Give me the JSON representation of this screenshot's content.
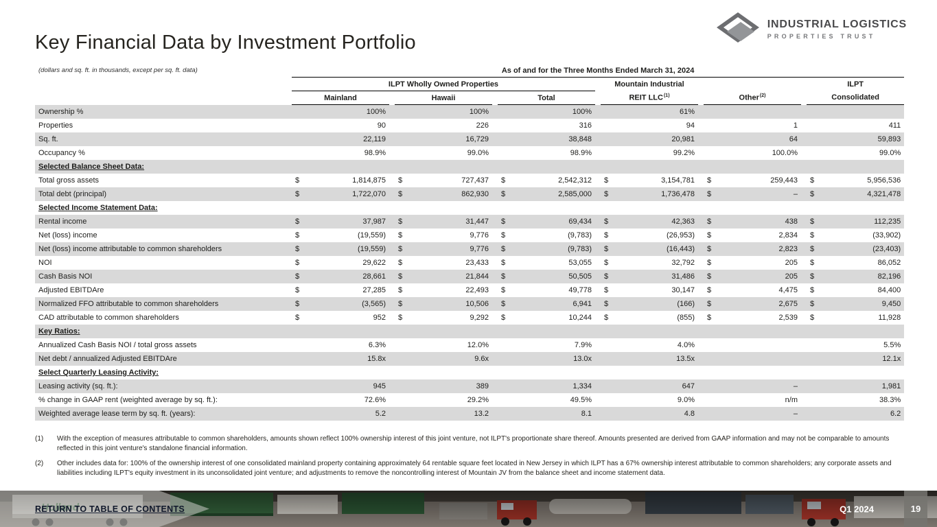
{
  "page": {
    "title": "Key Financial Data by Investment Portfolio",
    "units_note": "(dollars and sq. ft. in thousands, except per sq. ft. data)"
  },
  "logo": {
    "name_line1": "INDUSTRIAL LOGISTICS",
    "name_line2": "PROPERTIES TRUST"
  },
  "table": {
    "period_header": "As of and for the Three Months Ended March 31, 2024",
    "groups": {
      "wholly_owned": "ILPT Wholly Owned Properties",
      "mountain_line1": "Mountain Industrial",
      "mountain_line2": "REIT LLC",
      "mountain_footnote": "(1)",
      "other_label": "Other",
      "other_footnote": "(2)",
      "ilpt_line1": "ILPT",
      "ilpt_line2": "Consolidated"
    },
    "col_headers": {
      "mainland": "Mainland",
      "hawaii": "Hawaii",
      "total": "Total"
    },
    "rows": [
      {
        "type": "data",
        "dollar": false,
        "label": "Ownership %",
        "values": [
          "100%",
          "100%",
          "100%",
          "61%",
          "",
          ""
        ]
      },
      {
        "type": "data",
        "dollar": false,
        "label": "Properties",
        "values": [
          "90",
          "226",
          "316",
          "94",
          "1",
          "411"
        ]
      },
      {
        "type": "data",
        "dollar": false,
        "label": "Sq. ft.",
        "values": [
          "22,119",
          "16,729",
          "38,848",
          "20,981",
          "64",
          "59,893"
        ]
      },
      {
        "type": "data",
        "dollar": false,
        "label": "Occupancy %",
        "values": [
          "98.9%",
          "99.0%",
          "98.9%",
          "99.2%",
          "100.0%",
          "99.0%"
        ]
      },
      {
        "type": "section",
        "label": "Selected Balance Sheet Data:"
      },
      {
        "type": "data",
        "dollar": true,
        "label": "Total gross assets",
        "values": [
          "1,814,875",
          "727,437",
          "2,542,312",
          "3,154,781",
          "259,443",
          "5,956,536"
        ]
      },
      {
        "type": "data",
        "dollar": true,
        "label": "Total debt (principal)",
        "values": [
          "1,722,070",
          "862,930",
          "2,585,000",
          "1,736,478",
          "–",
          "4,321,478"
        ]
      },
      {
        "type": "section",
        "label": "Selected Income Statement Data:"
      },
      {
        "type": "data",
        "dollar": true,
        "label": "Rental income",
        "values": [
          "37,987",
          "31,447",
          "69,434",
          "42,363",
          "438",
          "112,235"
        ]
      },
      {
        "type": "data",
        "dollar": true,
        "label": "Net (loss) income",
        "values": [
          "(19,559)",
          "9,776",
          "(9,783)",
          "(26,953)",
          "2,834",
          "(33,902)"
        ]
      },
      {
        "type": "data",
        "dollar": true,
        "label": "Net (loss) income attributable to common shareholders",
        "values": [
          "(19,559)",
          "9,776",
          "(9,783)",
          "(16,443)",
          "2,823",
          "(23,403)"
        ]
      },
      {
        "type": "data",
        "dollar": true,
        "label": "NOI",
        "values": [
          "29,622",
          "23,433",
          "53,055",
          "32,792",
          "205",
          "86,052"
        ]
      },
      {
        "type": "data",
        "dollar": true,
        "label": "Cash Basis NOI",
        "values": [
          "28,661",
          "21,844",
          "50,505",
          "31,486",
          "205",
          "82,196"
        ]
      },
      {
        "type": "data",
        "dollar": true,
        "label": "Adjusted EBITDAre",
        "values": [
          "27,285",
          "22,493",
          "49,778",
          "30,147",
          "4,475",
          "84,400"
        ]
      },
      {
        "type": "data",
        "dollar": true,
        "label": "Normalized FFO attributable to common shareholders",
        "values": [
          "(3,565)",
          "10,506",
          "6,941",
          "(166)",
          "2,675",
          "9,450"
        ]
      },
      {
        "type": "data",
        "dollar": true,
        "label": "CAD attributable to common shareholders",
        "values": [
          "952",
          "9,292",
          "10,244",
          "(855)",
          "2,539",
          "11,928"
        ]
      },
      {
        "type": "section",
        "label": "Key Ratios:"
      },
      {
        "type": "data",
        "dollar": false,
        "label": "Annualized Cash Basis NOI / total gross assets",
        "values": [
          "6.3%",
          "12.0%",
          "7.9%",
          "4.0%",
          "",
          "5.5%"
        ]
      },
      {
        "type": "data",
        "dollar": false,
        "label": "Net debt / annualized Adjusted EBITDAre",
        "values": [
          "15.8x",
          "9.6x",
          "13.0x",
          "13.5x",
          "",
          "12.1x"
        ]
      },
      {
        "type": "section",
        "label": "Select Quarterly Leasing Activity:"
      },
      {
        "type": "data",
        "dollar": false,
        "label": "Leasing activity (sq. ft.):",
        "values": [
          "945",
          "389",
          "1,334",
          "647",
          "–",
          "1,981"
        ]
      },
      {
        "type": "data",
        "dollar": false,
        "label": "% change in GAAP rent (weighted average by sq. ft.):",
        "values": [
          "72.6%",
          "29.2%",
          "49.5%",
          "9.0%",
          "n/m",
          "38.3%"
        ]
      },
      {
        "type": "data",
        "dollar": false,
        "label": "Weighted average lease term by sq. ft. (years):",
        "values": [
          "5.2",
          "13.2",
          "8.1",
          "4.8",
          "–",
          "6.2"
        ]
      }
    ]
  },
  "footnotes": [
    {
      "number": "(1)",
      "text": "With the exception of measures attributable to common shareholders, amounts shown reflect 100% ownership interest of this joint venture, not ILPT's proportionate share thereof. Amounts presented are derived from GAAP information and may not be comparable to amounts reflected in this joint venture's standalone financial information."
    },
    {
      "number": "(2)",
      "text": "Other includes data for: 100% of the ownership interest of one consolidated mainland property containing approximately 64 rentable square feet located in New Jersey in which ILPT has a 67% ownership interest attributable to common shareholders; any corporate assets and liabilities including ILPT's equity investment in its unconsolidated joint venture; and adjustments to remove the noncontrolling interest of Mountain JV from the balance sheet and income statement data."
    }
  ],
  "footer": {
    "return_link": "RETURN TO TABLE OF CONTENTS",
    "period": "Q1 2024",
    "page_number": "19",
    "photo_label": "Holland"
  }
}
